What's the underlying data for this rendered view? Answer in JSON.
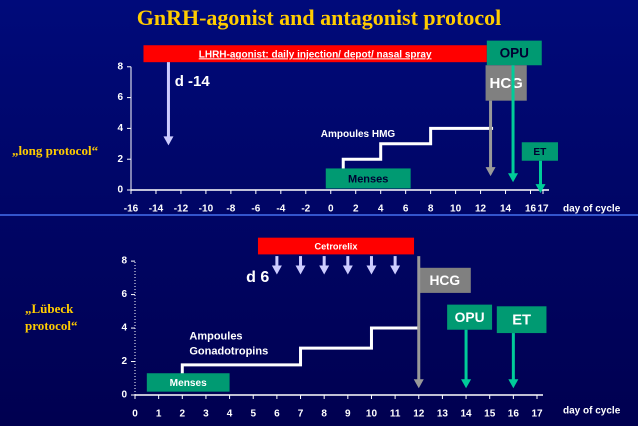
{
  "title": "GnRH-agonist and antagonist protocol",
  "chart_data": [
    {
      "type": "line",
      "side_label": [
        "„long protocol“"
      ],
      "xlabel": "day of cycle",
      "xlim": [
        -16,
        17
      ],
      "xticks": [
        -16,
        -14,
        -12,
        -10,
        -8,
        -6,
        -4,
        -2,
        0,
        2,
        4,
        6,
        8,
        10,
        12,
        14,
        16,
        17
      ],
      "ylim": [
        0,
        10
      ],
      "yticks": [
        0,
        2,
        4,
        6,
        8
      ],
      "series": [
        {
          "name": "Ampoules HMG",
          "color": "#ffffff",
          "x": [
            1,
            1,
            4,
            4,
            8,
            8,
            13
          ],
          "values": [
            1.3,
            2,
            2,
            3,
            3,
            4,
            4
          ]
        }
      ],
      "boxes": [
        {
          "label": "LHRH-agonist: daily injection/  depot/  nasal spray",
          "x0": -15,
          "x1": 12.5,
          "y0": 8.3,
          "y1": 9.4,
          "color": "#ff0000",
          "text_color": "#ffffff"
        },
        {
          "label": "OPU",
          "x0": 12.5,
          "x1": 16.9,
          "y0": 8.1,
          "y1": 9.7,
          "color": "#009a72",
          "text_color": "#000033"
        },
        {
          "label": "HCG",
          "x0": 12.4,
          "x1": 15.7,
          "y0": 5.8,
          "y1": 8.1,
          "color": "#808080",
          "text_color": "#ffffff"
        },
        {
          "label": "Menses",
          "x0": -0.4,
          "x1": 6.4,
          "y0": 0.1,
          "y1": 1.4,
          "color": "#009a72",
          "text_color": "#000033"
        },
        {
          "label": "ET",
          "x0": 15.3,
          "x1": 18.2,
          "y0": 1.9,
          "y1": 3.1,
          "color": "#009a72",
          "text_color": "#000033"
        }
      ],
      "arrows": [
        {
          "x": -13,
          "from": 8.3,
          "to": 2.9,
          "color": "#ccccff"
        },
        {
          "x": 12.8,
          "from": 5.8,
          "to": 0.9,
          "color": "#999999"
        },
        {
          "x": 14.6,
          "from": 8.1,
          "to": 0.5,
          "color": "#00cc99"
        },
        {
          "x": 16.8,
          "from": 1.9,
          "to": -0.2,
          "color": "#00cc99"
        }
      ],
      "annotations": [
        {
          "lines": [
            "d -14"
          ],
          "x": -12.5,
          "y": 7,
          "size": 15
        },
        {
          "lines": [
            "Ampoules HMG"
          ],
          "x": -0.8,
          "y": 3.6,
          "size": 10
        }
      ]
    },
    {
      "type": "line",
      "side_label": [
        "„Lübeck",
        "protocol“"
      ],
      "xlabel": "day of cycle",
      "xlim": [
        0,
        17
      ],
      "xticks": [
        0,
        1,
        2,
        3,
        4,
        5,
        6,
        7,
        8,
        9,
        10,
        11,
        12,
        13,
        14,
        15,
        16,
        17
      ],
      "ylim": [
        0,
        9.5
      ],
      "yticks": [
        0,
        2,
        4,
        6,
        8
      ],
      "series": [
        {
          "name": "Ampoules Gonadotropins",
          "color": "#ffffff",
          "x": [
            2,
            2,
            7,
            7,
            10,
            10,
            12
          ],
          "values": [
            1.2,
            1.8,
            1.8,
            2.8,
            2.8,
            4,
            4
          ]
        }
      ],
      "boxes": [
        {
          "label": "Cetrorelix",
          "x0": 5.2,
          "x1": 11.8,
          "y0": 8.4,
          "y1": 9.4,
          "color": "#ff0000",
          "text_color": "#ffffff"
        },
        {
          "label": "HCG",
          "x0": 12,
          "x1": 14.2,
          "y0": 6.1,
          "y1": 7.6,
          "color": "#808080",
          "text_color": "#ffffff"
        },
        {
          "label": "OPU",
          "x0": 13.2,
          "x1": 15.1,
          "y0": 3.9,
          "y1": 5.4,
          "color": "#009a72",
          "text_color": "#ffffff"
        },
        {
          "label": "ET",
          "x0": 15.3,
          "x1": 17.4,
          "y0": 3.7,
          "y1": 5.3,
          "color": "#009a72",
          "text_color": "#ffffff"
        },
        {
          "label": "Menses",
          "x0": 0.5,
          "x1": 4,
          "y0": 0.2,
          "y1": 1.3,
          "color": "#009a72",
          "text_color": "#ffffff"
        }
      ],
      "arrows": [
        {
          "x": 6,
          "from": 8.3,
          "to": 7.2,
          "color": "#ccccff"
        },
        {
          "x": 7,
          "from": 8.3,
          "to": 7.2,
          "color": "#ccccff"
        },
        {
          "x": 8,
          "from": 8.3,
          "to": 7.2,
          "color": "#ccccff"
        },
        {
          "x": 9,
          "from": 8.3,
          "to": 7.2,
          "color": "#ccccff"
        },
        {
          "x": 10,
          "from": 8.3,
          "to": 7.2,
          "color": "#ccccff"
        },
        {
          "x": 11,
          "from": 8.3,
          "to": 7.2,
          "color": "#ccccff"
        },
        {
          "x": 12,
          "from": 8.3,
          "to": 0.4,
          "color": "#999999"
        },
        {
          "x": 14,
          "from": 3.9,
          "to": 0.4,
          "color": "#00cc99"
        },
        {
          "x": 16,
          "from": 3.7,
          "to": 0.4,
          "color": "#00cc99"
        }
      ],
      "annotations": [
        {
          "lines": [
            "d 6"
          ],
          "x": 4.7,
          "y": 7,
          "size": 16
        },
        {
          "lines": [
            "Ampoules",
            "Gonadotropins"
          ],
          "x": 2.3,
          "y": 3.5,
          "size": 11
        }
      ]
    }
  ]
}
